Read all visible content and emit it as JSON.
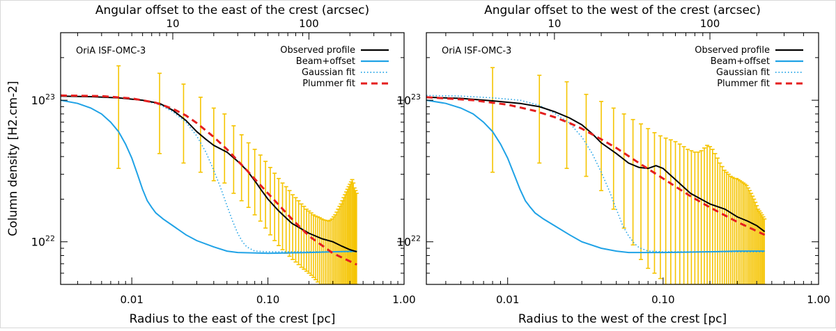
{
  "chart_data": [
    {
      "type": "line",
      "label": "OriA ISF-OMC-3",
      "top_axis_label": "Angular offset to the east of the crest (arcsec)",
      "xlabel": "Radius to the east of the crest [pc]",
      "ylabel": "Column density [H2.cm-2]",
      "x_scale": "log",
      "y_scale": "log",
      "xlim": [
        0.003,
        1.0
      ],
      "ylim": [
        5e+21,
        3e+23
      ],
      "x_ticks": [
        0.01,
        0.1,
        1.0
      ],
      "x_tick_labels": [
        "0.01",
        "0.10",
        "1.00"
      ],
      "y_ticks": [
        1e+22,
        1e+23
      ],
      "y_tick_labels": [
        {
          "base": "10",
          "exp": "22"
        },
        {
          "base": "10",
          "exp": "23"
        }
      ],
      "top_ticks_arcsec": [
        10,
        100
      ],
      "top_tick_labels": [
        "10",
        "100"
      ],
      "arcsec_per_pc": 500,
      "legend_position": "top-right",
      "series": [
        {
          "name": "Observed profile",
          "color": "#000000",
          "style": "solid",
          "x": [
            0.003,
            0.005,
            0.008,
            0.012,
            0.016,
            0.02,
            0.025,
            0.03,
            0.035,
            0.04,
            0.05,
            0.06,
            0.07,
            0.08,
            0.09,
            0.1,
            0.12,
            0.15,
            0.2,
            0.25,
            0.3,
            0.35,
            0.4,
            0.45
          ],
          "y": [
            1.07e+23,
            1.06e+23,
            1.04e+23,
            1e+23,
            9.5e+22,
            8.5e+22,
            7.2e+22,
            6e+22,
            5.3e+22,
            4.8e+22,
            4.3e+22,
            3.7e+22,
            3.2e+22,
            2.7e+22,
            2.3e+22,
            2e+22,
            1.65e+22,
            1.35e+22,
            1.15e+22,
            1.05e+22,
            1e+22,
            9.3e+21,
            8.8e+21,
            8.5e+21
          ]
        },
        {
          "name": "Beam+offset",
          "color": "#1fa2e6",
          "style": "solid",
          "x": [
            0.003,
            0.004,
            0.005,
            0.006,
            0.007,
            0.008,
            0.009,
            0.01,
            0.011,
            0.012,
            0.013,
            0.014,
            0.015,
            0.017,
            0.02,
            0.025,
            0.03,
            0.04,
            0.05,
            0.06,
            0.1,
            0.2,
            0.3,
            0.45
          ],
          "y": [
            1e+23,
            9.5e+22,
            8.8e+22,
            8e+22,
            7e+22,
            6e+22,
            4.9e+22,
            3.9e+22,
            3e+22,
            2.35e+22,
            1.95e+22,
            1.75e+22,
            1.6e+22,
            1.45e+22,
            1.3e+22,
            1.12e+22,
            1.02e+22,
            9.2e+21,
            8.6e+21,
            8.4e+21,
            8.3e+21,
            8.4e+21,
            8.5e+21,
            8.6e+21
          ]
        },
        {
          "name": "Gaussian fit",
          "color": "#1fa2e6",
          "style": "dotted",
          "x": [
            0.003,
            0.005,
            0.008,
            0.012,
            0.016,
            0.02,
            0.025,
            0.03,
            0.035,
            0.04,
            0.045,
            0.05,
            0.055,
            0.06,
            0.065,
            0.07,
            0.08,
            0.1,
            0.2,
            0.45
          ],
          "y": [
            1.07e+23,
            1.06e+23,
            1.04e+23,
            1e+23,
            9.3e+22,
            8.3e+22,
            7e+22,
            5.6e+22,
            4.3e+22,
            3.2e+22,
            2.4e+22,
            1.8e+22,
            1.4e+22,
            1.15e+22,
            1e+22,
            9.2e+21,
            8.6e+21,
            8.5e+21,
            8.5e+21,
            8.5e+21
          ]
        },
        {
          "name": "Plummer fit",
          "color": "#e41e1e",
          "style": "dashed",
          "x": [
            0.003,
            0.006,
            0.01,
            0.015,
            0.02,
            0.025,
            0.03,
            0.04,
            0.05,
            0.07,
            0.1,
            0.15,
            0.2,
            0.3,
            0.45
          ],
          "y": [
            1.08e+23,
            1.07e+23,
            1.03e+23,
            9.6e+22,
            8.7e+22,
            7.8e+22,
            6.9e+22,
            5.5e+22,
            4.5e+22,
            3.2e+22,
            2.2e+22,
            1.45e+22,
            1.1e+22,
            8.3e+21,
            6.9e+21
          ]
        }
      ],
      "error_bars": {
        "color": "#f5c400",
        "x": [
          0.008,
          0.016,
          0.024,
          0.032,
          0.04,
          0.048,
          0.056,
          0.064,
          0.072,
          0.08,
          0.088,
          0.096,
          0.104,
          0.112,
          0.12,
          0.128,
          0.136,
          0.144,
          0.152,
          0.16,
          0.168,
          0.176,
          0.184,
          0.192,
          0.2,
          0.208,
          0.216,
          0.224,
          0.232,
          0.24,
          0.248,
          0.256,
          0.264,
          0.272,
          0.28,
          0.288,
          0.296,
          0.304,
          0.312,
          0.32,
          0.328,
          0.336,
          0.344,
          0.352,
          0.36,
          0.368,
          0.376,
          0.384,
          0.392,
          0.4,
          0.408,
          0.416,
          0.424,
          0.432,
          0.44,
          0.448
        ],
        "low": [
          3.3e+22,
          4.2e+22,
          3.6e+22,
          3.1e+22,
          2.7e+22,
          2.6e+22,
          2.2e+22,
          1.95e+22,
          1.75e+22,
          1.55e+22,
          1.4e+22,
          1.25e+22,
          1.12e+22,
          1.02e+22,
          9.4e+21,
          8.8e+21,
          8.3e+21,
          7.9e+21,
          7.5e+21,
          7.2e+21,
          6.9e+21,
          6.6e+21,
          6.4e+21,
          6.2e+21,
          6e+21,
          5.8e+21,
          5.6e+21,
          5.4e+21,
          5.2e+21,
          5e+21,
          5e+21,
          5e+21,
          5e+21,
          5e+21,
          5e+21,
          5e+21,
          5e+21,
          5e+21,
          5e+21,
          5e+21,
          5e+21,
          5e+21,
          5e+21,
          5e+21,
          5e+21,
          5e+21,
          5e+21,
          5e+21,
          5e+21,
          5e+21,
          5e+21,
          5e+21,
          5e+21,
          5e+21,
          5e+21,
          5e+21
        ],
        "high": [
          1.75e+23,
          1.55e+23,
          1.3e+23,
          1.05e+23,
          8.8e+22,
          8e+22,
          6.6e+22,
          5.7e+22,
          5e+22,
          4.5e+22,
          4.1e+22,
          3.7e+22,
          3.35e+22,
          3.05e+22,
          2.8e+22,
          2.6e+22,
          2.45e+22,
          2.3e+22,
          2.15e+22,
          2.05e+22,
          1.95e+22,
          1.85e+22,
          1.78e+22,
          1.7e+22,
          1.65e+22,
          1.6e+22,
          1.55e+22,
          1.52e+22,
          1.5e+22,
          1.48e+22,
          1.45e+22,
          1.43e+22,
          1.42e+22,
          1.41e+22,
          1.4e+22,
          1.42e+22,
          1.45e+22,
          1.5e+22,
          1.55e+22,
          1.62e+22,
          1.7e+22,
          1.78e+22,
          1.85e+22,
          1.95e+22,
          2.05e+22,
          2.15e+22,
          2.25e+22,
          2.35e+22,
          2.45e+22,
          2.55e+22,
          2.65e+22,
          2.75e+22,
          2.6e+22,
          2.4e+22,
          2.3e+22,
          2.2e+22
        ]
      }
    },
    {
      "type": "line",
      "label": "OriA ISF-OMC-3",
      "top_axis_label": "Angular offset to the west of the crest (arcsec)",
      "xlabel": "Radius to the west of the crest [pc]",
      "ylabel": "",
      "x_scale": "log",
      "y_scale": "log",
      "xlim": [
        0.003,
        1.0
      ],
      "ylim": [
        5e+21,
        3e+23
      ],
      "x_ticks": [
        0.01,
        0.1,
        1.0
      ],
      "x_tick_labels": [
        "0.01",
        "0.10",
        "1.00"
      ],
      "y_ticks": [
        1e+22,
        1e+23
      ],
      "y_tick_labels": [
        {
          "base": "10",
          "exp": "22"
        },
        {
          "base": "10",
          "exp": "23"
        }
      ],
      "top_ticks_arcsec": [
        10,
        100
      ],
      "top_tick_labels": [
        "10",
        "100"
      ],
      "arcsec_per_pc": 500,
      "legend_position": "top-right",
      "series": [
        {
          "name": "Observed profile",
          "color": "#000000",
          "style": "solid",
          "x": [
            0.003,
            0.005,
            0.008,
            0.012,
            0.016,
            0.02,
            0.025,
            0.03,
            0.035,
            0.04,
            0.05,
            0.06,
            0.07,
            0.08,
            0.09,
            0.1,
            0.12,
            0.15,
            0.2,
            0.25,
            0.3,
            0.35,
            0.4,
            0.45
          ],
          "y": [
            1.05e+23,
            1.03e+23,
            9.9e+22,
            9.5e+22,
            9e+22,
            8.3e+22,
            7.5e+22,
            6.7e+22,
            5.8e+22,
            5e+22,
            4.2e+22,
            3.6e+22,
            3.35e+22,
            3.3e+22,
            3.45e+22,
            3.3e+22,
            2.75e+22,
            2.2e+22,
            1.85e+22,
            1.7e+22,
            1.5e+22,
            1.4e+22,
            1.3e+22,
            1.18e+22
          ]
        },
        {
          "name": "Beam+offset",
          "color": "#1fa2e6",
          "style": "solid",
          "x": [
            0.003,
            0.004,
            0.005,
            0.006,
            0.007,
            0.008,
            0.009,
            0.01,
            0.011,
            0.012,
            0.013,
            0.014,
            0.015,
            0.017,
            0.02,
            0.025,
            0.03,
            0.04,
            0.05,
            0.06,
            0.1,
            0.2,
            0.3,
            0.45
          ],
          "y": [
            1e+23,
            9.5e+22,
            8.8e+22,
            8e+22,
            7e+22,
            6e+22,
            4.9e+22,
            3.9e+22,
            3e+22,
            2.35e+22,
            1.95e+22,
            1.75e+22,
            1.6e+22,
            1.45e+22,
            1.3e+22,
            1.12e+22,
            1e+22,
            9e+21,
            8.6e+21,
            8.4e+21,
            8.4e+21,
            8.5e+21,
            8.6e+21,
            8.6e+21
          ]
        },
        {
          "name": "Gaussian fit",
          "color": "#1fa2e6",
          "style": "dotted",
          "x": [
            0.003,
            0.005,
            0.008,
            0.012,
            0.016,
            0.02,
            0.025,
            0.03,
            0.035,
            0.04,
            0.045,
            0.05,
            0.055,
            0.06,
            0.065,
            0.07,
            0.08,
            0.1,
            0.2,
            0.45
          ],
          "y": [
            1.08e+23,
            1.07e+23,
            1.04e+23,
            1e+23,
            9.2e+22,
            8.1e+22,
            6.9e+22,
            5.5e+22,
            4.2e+22,
            3.1e+22,
            2.3e+22,
            1.7e+22,
            1.3e+22,
            1.1e+22,
            9.8e+21,
            9.1e+21,
            8.6e+21,
            8.5e+21,
            8.5e+21,
            8.5e+21
          ]
        },
        {
          "name": "Plummer fit",
          "color": "#e41e1e",
          "style": "dashed",
          "x": [
            0.003,
            0.006,
            0.01,
            0.015,
            0.02,
            0.025,
            0.03,
            0.04,
            0.05,
            0.07,
            0.1,
            0.15,
            0.2,
            0.3,
            0.45
          ],
          "y": [
            1.05e+23,
            1e+23,
            9.3e+22,
            8.4e+22,
            7.6e+22,
            6.9e+22,
            6.3e+22,
            5.3e+22,
            4.6e+22,
            3.6e+22,
            2.8e+22,
            2.1e+22,
            1.75e+22,
            1.38e+22,
            1.12e+22
          ]
        }
      ],
      "error_bars": {
        "color": "#f5c400",
        "x": [
          0.008,
          0.016,
          0.024,
          0.032,
          0.04,
          0.048,
          0.056,
          0.064,
          0.072,
          0.08,
          0.088,
          0.096,
          0.104,
          0.112,
          0.12,
          0.128,
          0.136,
          0.144,
          0.152,
          0.16,
          0.168,
          0.176,
          0.184,
          0.192,
          0.2,
          0.208,
          0.216,
          0.224,
          0.232,
          0.24,
          0.248,
          0.256,
          0.264,
          0.272,
          0.28,
          0.288,
          0.296,
          0.304,
          0.312,
          0.32,
          0.328,
          0.336,
          0.344,
          0.352,
          0.36,
          0.368,
          0.376,
          0.384,
          0.392,
          0.4,
          0.408,
          0.416,
          0.424,
          0.432,
          0.44,
          0.448
        ],
        "low": [
          3.1e+22,
          3.6e+22,
          3.3e+22,
          2.9e+22,
          2.3e+22,
          1.7e+22,
          1.25e+22,
          9.5e+21,
          7.5e+21,
          6.5e+21,
          6e+21,
          5.5e+21,
          5e+21,
          5e+21,
          5e+21,
          5e+21,
          5e+21,
          5e+21,
          5e+21,
          5e+21,
          5e+21,
          5e+21,
          5e+21,
          5e+21,
          5e+21,
          5e+21,
          5e+21,
          5e+21,
          5e+21,
          5e+21,
          5e+21,
          5e+21,
          5e+21,
          5e+21,
          5e+21,
          5e+21,
          5e+21,
          5e+21,
          5e+21,
          5e+21,
          5e+21,
          5e+21,
          5e+21,
          5e+21,
          5e+21,
          5e+21,
          5e+21,
          5e+21,
          5e+21,
          5e+21,
          5e+21,
          5e+21,
          5e+21,
          5e+21,
          5e+21,
          5e+21
        ],
        "high": [
          1.7e+23,
          1.5e+23,
          1.35e+23,
          1.1e+23,
          9.8e+22,
          8.8e+22,
          8e+22,
          7.3e+22,
          6.8e+22,
          6.3e+22,
          5.9e+22,
          5.6e+22,
          5.4e+22,
          5.25e+22,
          5.1e+22,
          4.9e+22,
          4.7e+22,
          4.5e+22,
          4.4e+22,
          4.3e+22,
          4.3e+22,
          4.4e+22,
          4.6e+22,
          4.8e+22,
          4.7e+22,
          4.5e+22,
          4.2e+22,
          3.9e+22,
          3.6e+22,
          3.4e+22,
          3.2e+22,
          3.1e+22,
          3e+22,
          2.9e+22,
          2.85e+22,
          2.8e+22,
          2.8e+22,
          2.75e+22,
          2.7e+22,
          2.65e+22,
          2.6e+22,
          2.55e+22,
          2.5e+22,
          2.4e+22,
          2.3e+22,
          2.2e+22,
          2.1e+22,
          2e+22,
          1.9e+22,
          1.8e+22,
          1.7e+22,
          1.65e+22,
          1.6e+22,
          1.55e+22,
          1.5e+22,
          1.45e+22
        ]
      }
    }
  ]
}
